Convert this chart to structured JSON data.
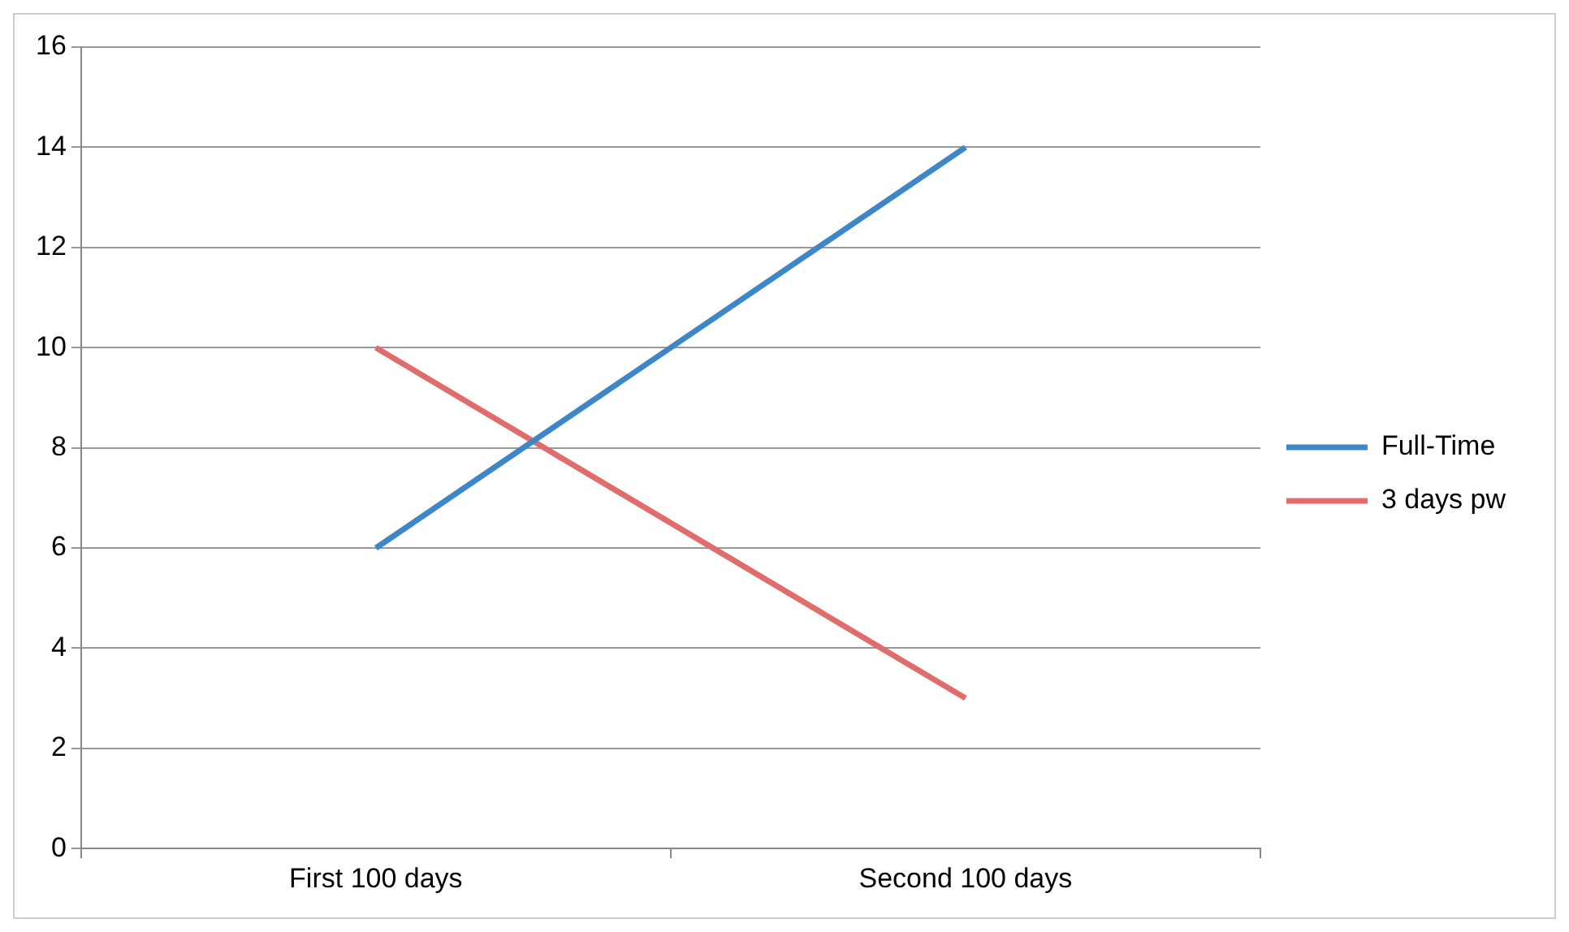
{
  "chart_data": {
    "type": "line",
    "categories": [
      "First 100 days",
      "Second 100 days"
    ],
    "series": [
      {
        "name": "Full-Time",
        "color": "#3d87c8",
        "values": [
          6,
          14
        ]
      },
      {
        "name": "3 days pw",
        "color": "#e06c6c",
        "values": [
          10,
          3
        ]
      }
    ],
    "ylim": [
      0,
      16
    ],
    "yticks": [
      0,
      2,
      4,
      6,
      8,
      10,
      12,
      14,
      16
    ],
    "grid": "y",
    "legend": "right",
    "marker": "none",
    "line_style": "solid"
  }
}
